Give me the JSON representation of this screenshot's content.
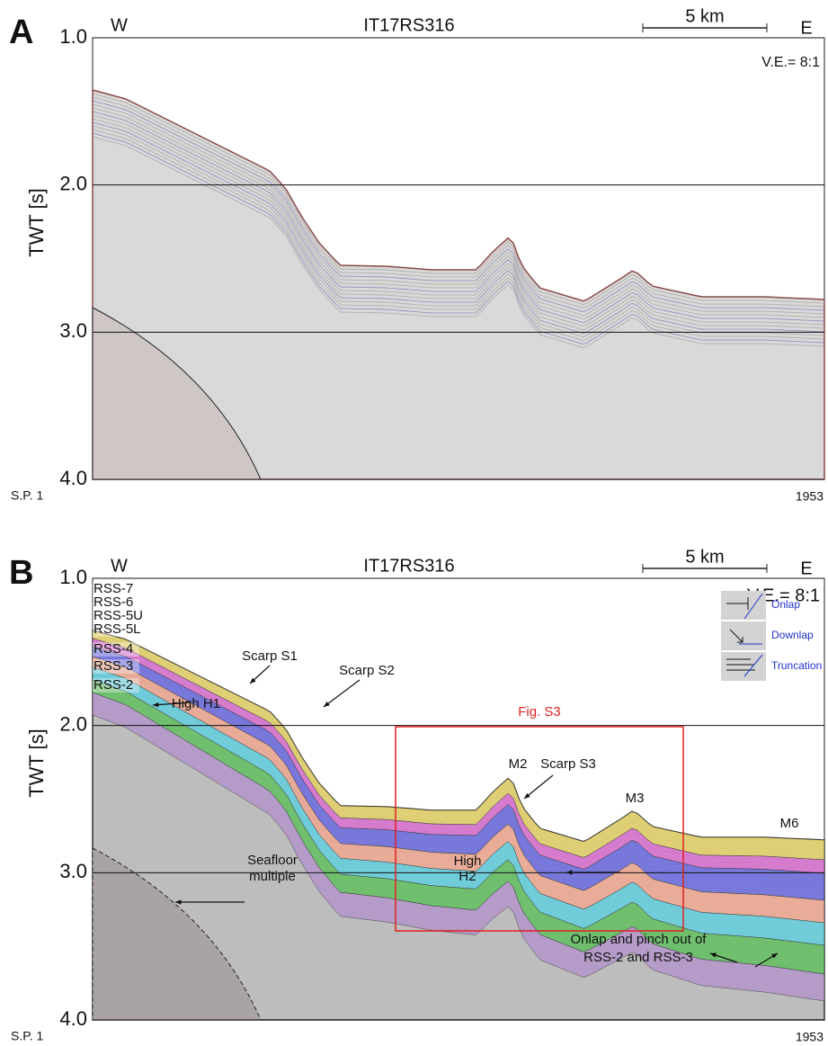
{
  "panels": [
    {
      "label": "A",
      "west": "W",
      "east": "E",
      "title": "IT17RS316",
      "scale_bar": "5 km",
      "vertical_exaggeration": "V.E.= 8:1",
      "y_axis_label": "TWT [s]",
      "yticks": [
        {
          "value": 1,
          "label": "1.0"
        },
        {
          "value": 2,
          "label": "2.0"
        },
        {
          "value": 3,
          "label": "3.0"
        },
        {
          "value": 4,
          "label": "4.0"
        }
      ],
      "shot_point_start": "S.P. 1",
      "shot_point_end": 1953
    },
    {
      "label": "B",
      "west": "W",
      "east": "E",
      "title": "IT17RS316",
      "scale_bar": "5 km",
      "vertical_exaggeration": "V.E.= 8:1",
      "y_axis_label": "TWT [s]",
      "yticks": [
        {
          "value": 1,
          "label": "1.0"
        },
        {
          "value": 2,
          "label": "2.0"
        },
        {
          "value": 3,
          "label": "3.0"
        },
        {
          "value": 4,
          "label": "4.0"
        }
      ],
      "shot_point_start": "S.P. 1",
      "shot_point_end": 1953,
      "units": [
        "RSS-7",
        "RSS-6",
        "RSS-5U",
        "RSS-5L",
        "RSS-4",
        "RSS-3",
        "RSS-2"
      ],
      "legend": [
        "Onlap",
        "Downlap",
        "Truncation"
      ],
      "inset_label": "Fig. S3",
      "annotations": [
        "Scarp S1",
        "Scarp S2",
        "High H1",
        "M2",
        "Scarp S3",
        "M3",
        "M6",
        "High",
        "H2",
        "Seafloor",
        "multiple",
        "Onlap and pinch out of",
        "RSS-2 and RSS-3"
      ]
    }
  ]
}
